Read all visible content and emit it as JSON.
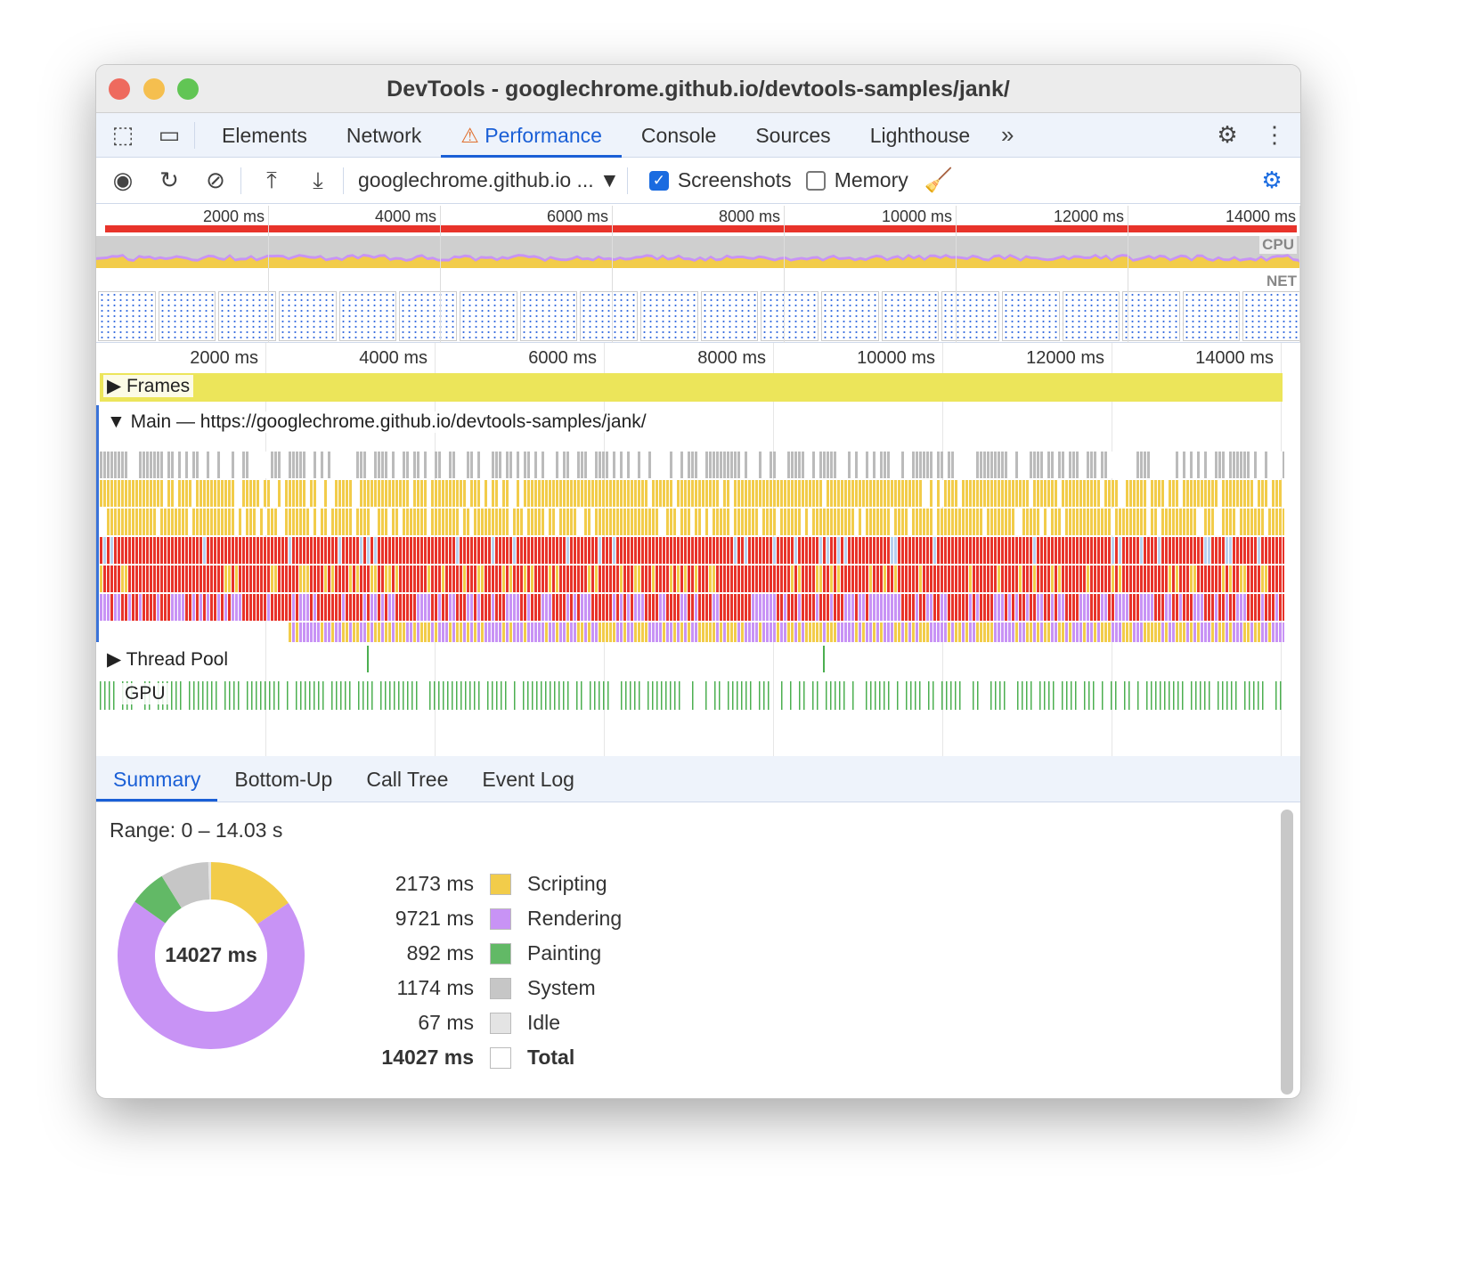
{
  "window": {
    "title": "DevTools - googlechrome.github.io/devtools-samples/jank/"
  },
  "tabs": [
    {
      "label": "Elements"
    },
    {
      "label": "Network"
    },
    {
      "label": "Performance",
      "active": true,
      "warning": true
    },
    {
      "label": "Console"
    },
    {
      "label": "Sources"
    },
    {
      "label": "Lighthouse"
    }
  ],
  "toolbar": {
    "url_select": "googlechrome.github.io ...",
    "screenshots_label": "Screenshots",
    "screenshots_checked": true,
    "memory_label": "Memory",
    "memory_checked": false
  },
  "overview": {
    "ticks": [
      "2000 ms",
      "4000 ms",
      "6000 ms",
      "8000 ms",
      "10000 ms",
      "12000 ms",
      "14000 ms"
    ],
    "cpu_label": "CPU",
    "net_label": "NET"
  },
  "timeline": {
    "ticks": [
      "2000 ms",
      "4000 ms",
      "6000 ms",
      "8000 ms",
      "10000 ms",
      "12000 ms",
      "14000 ms"
    ],
    "tracks": {
      "frames": "Frames",
      "main": "Main — https://googlechrome.github.io/devtools-samples/jank/",
      "thread_pool": "Thread Pool",
      "gpu": "GPU"
    }
  },
  "bottom_tabs": [
    {
      "label": "Summary",
      "active": true
    },
    {
      "label": "Bottom-Up"
    },
    {
      "label": "Call Tree"
    },
    {
      "label": "Event Log"
    }
  ],
  "summary": {
    "range": "Range: 0 – 14.03 s",
    "total_center": "14027 ms",
    "items": [
      {
        "value": "2173 ms",
        "label": "Scripting",
        "ms": 2173,
        "color": "#f2cc4a"
      },
      {
        "value": "9721 ms",
        "label": "Rendering",
        "ms": 9721,
        "color": "#c893f5"
      },
      {
        "value": "892 ms",
        "label": "Painting",
        "ms": 892,
        "color": "#62b966"
      },
      {
        "value": "1174 ms",
        "label": "System",
        "ms": 1174,
        "color": "#c6c6c6"
      },
      {
        "value": "67 ms",
        "label": "Idle",
        "ms": 67,
        "color": "#e4e4e4"
      },
      {
        "value": "14027 ms",
        "label": "Total",
        "bold": true,
        "color": "#ffffff"
      }
    ]
  }
}
